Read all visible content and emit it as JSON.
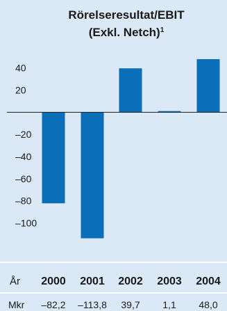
{
  "chart_data": {
    "type": "bar",
    "title_line1": "Rörelseresultat/EBIT",
    "title_line2": "(Exkl. Netch)",
    "title_sup": "1",
    "categories": [
      "2000",
      "2001",
      "2002",
      "2003",
      "2004"
    ],
    "values": [
      -82.2,
      -113.8,
      39.7,
      1.1,
      48.0
    ],
    "value_labels": [
      "–82,2",
      "–113,8",
      "39,7",
      "1,1",
      "48,0"
    ],
    "y_ticks": [
      40,
      20,
      -20,
      -40,
      -60,
      -80,
      -100
    ],
    "y_tick_labels": [
      "40",
      "20",
      "–20",
      "–40",
      "–60",
      "–80",
      "–100"
    ],
    "ylim": [
      -116,
      48
    ],
    "row_label_year": "År",
    "row_label_value": "Mkr",
    "colors": {
      "background": "#dbe8f5",
      "bar": "#0a6fb8",
      "axis": "#1a1a1a",
      "separator": "#ffffff"
    }
  }
}
